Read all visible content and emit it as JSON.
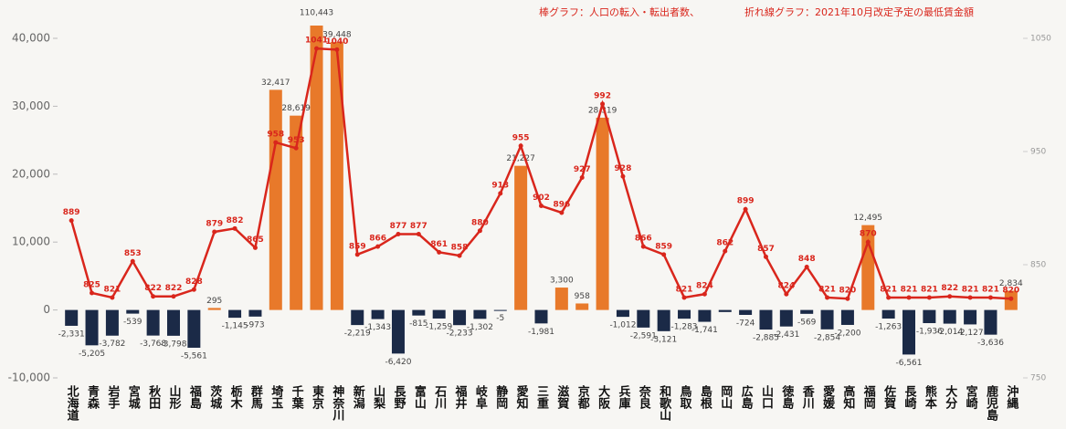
{
  "chart_data": {
    "type": "bar_line",
    "annotations": [
      "棒グラフ：人口の転入・転出者数、",
      "折れ線グラフ：2021年10月改定予定の最低賃金額"
    ],
    "categories": [
      "北海道",
      "青森",
      "岩手",
      "宮城",
      "秋田",
      "山形",
      "福島",
      "茨城",
      "栃木",
      "群馬",
      "埼玉",
      "千葉",
      "東京",
      "神奈川",
      "新潟",
      "山梨",
      "長野",
      "富山",
      "石川",
      "福井",
      "岐阜",
      "静岡",
      "愛知",
      "三重",
      "滋賀",
      "京都",
      "大阪",
      "兵庫",
      "奈良",
      "和歌山",
      "鳥取",
      "島根",
      "岡山",
      "広島",
      "山口",
      "徳島",
      "香川",
      "愛媛",
      "高知",
      "福岡",
      "佐賀",
      "長崎",
      "熊本",
      "大分",
      "宮崎",
      "鹿児島",
      "沖縄"
    ],
    "series": [
      {
        "name": "人口の転入・転出者数",
        "color": "#e8792a",
        "negative_color": "#1b2a47",
        "values": [
          -2331,
          -5205,
          -3782,
          -539,
          -3768,
          -3798,
          -5561,
          295,
          -1145,
          -973,
          32417,
          28619,
          110443,
          39448,
          -2219,
          -1343,
          -6420,
          -815,
          -1259,
          -2233,
          -1302,
          -5,
          21227,
          -1981,
          3300,
          958,
          28319,
          -1012,
          -2591,
          -3121,
          -1283,
          -1741,
          -300,
          -724,
          -2885,
          -2431,
          -569,
          -2854,
          -2200,
          12495,
          -1263,
          -6561,
          -1936,
          -2014,
          -2127,
          -3636,
          2834
        ],
        "value_labels": [
          "-2,331",
          "-5,205",
          "-3,782",
          "-539",
          "-3,768",
          "-3,798",
          "-5,561",
          "295",
          "-1,145",
          "-973",
          "32,417",
          "28,619",
          "110,443",
          "39,448",
          "-2,219",
          "-1,343",
          "-6,420",
          "-815",
          "-1,259",
          "-2,233",
          "-1,302",
          "-5",
          "21,227",
          "-1,981",
          "3,300",
          "958",
          "28,319",
          "-1,012",
          "-2,591",
          "-3,121",
          "-1,283",
          "-1,741",
          null,
          "-724",
          "-2,885",
          "-2,431",
          "-569",
          "-2,854",
          "-2,200",
          "12,495",
          "-1,263",
          "-6,561",
          "-1,936",
          "-2,014",
          "-2,127",
          "-3,636",
          "2,834"
        ]
      },
      {
        "name": "最低賃金額",
        "color": "#d9261c",
        "axis": "y2",
        "values": [
          889,
          825,
          821,
          853,
          822,
          822,
          828,
          879,
          882,
          865,
          958,
          953,
          1041,
          1040,
          859,
          866,
          877,
          877,
          861,
          858,
          880,
          913,
          955,
          902,
          896,
          927,
          992,
          928,
          866,
          859,
          821,
          824,
          862,
          899,
          857,
          824,
          848,
          821,
          820,
          870,
          821,
          821,
          821,
          822,
          821,
          821,
          820
        ]
      }
    ],
    "ylim": [
      -10000,
      40000
    ],
    "yticks": [
      {
        "value": -10000,
        "label": "-10,000"
      },
      0,
      {
        "value": 10000,
        "label": "10,000"
      },
      {
        "value": 20000,
        "label": "20,000"
      },
      {
        "value": 30000,
        "label": "30,000"
      },
      {
        "value": 40000,
        "label": "40,000"
      }
    ],
    "y2lim": [
      750,
      1050
    ],
    "y2ticks": [
      750,
      850,
      950,
      1050
    ],
    "grid": false
  }
}
